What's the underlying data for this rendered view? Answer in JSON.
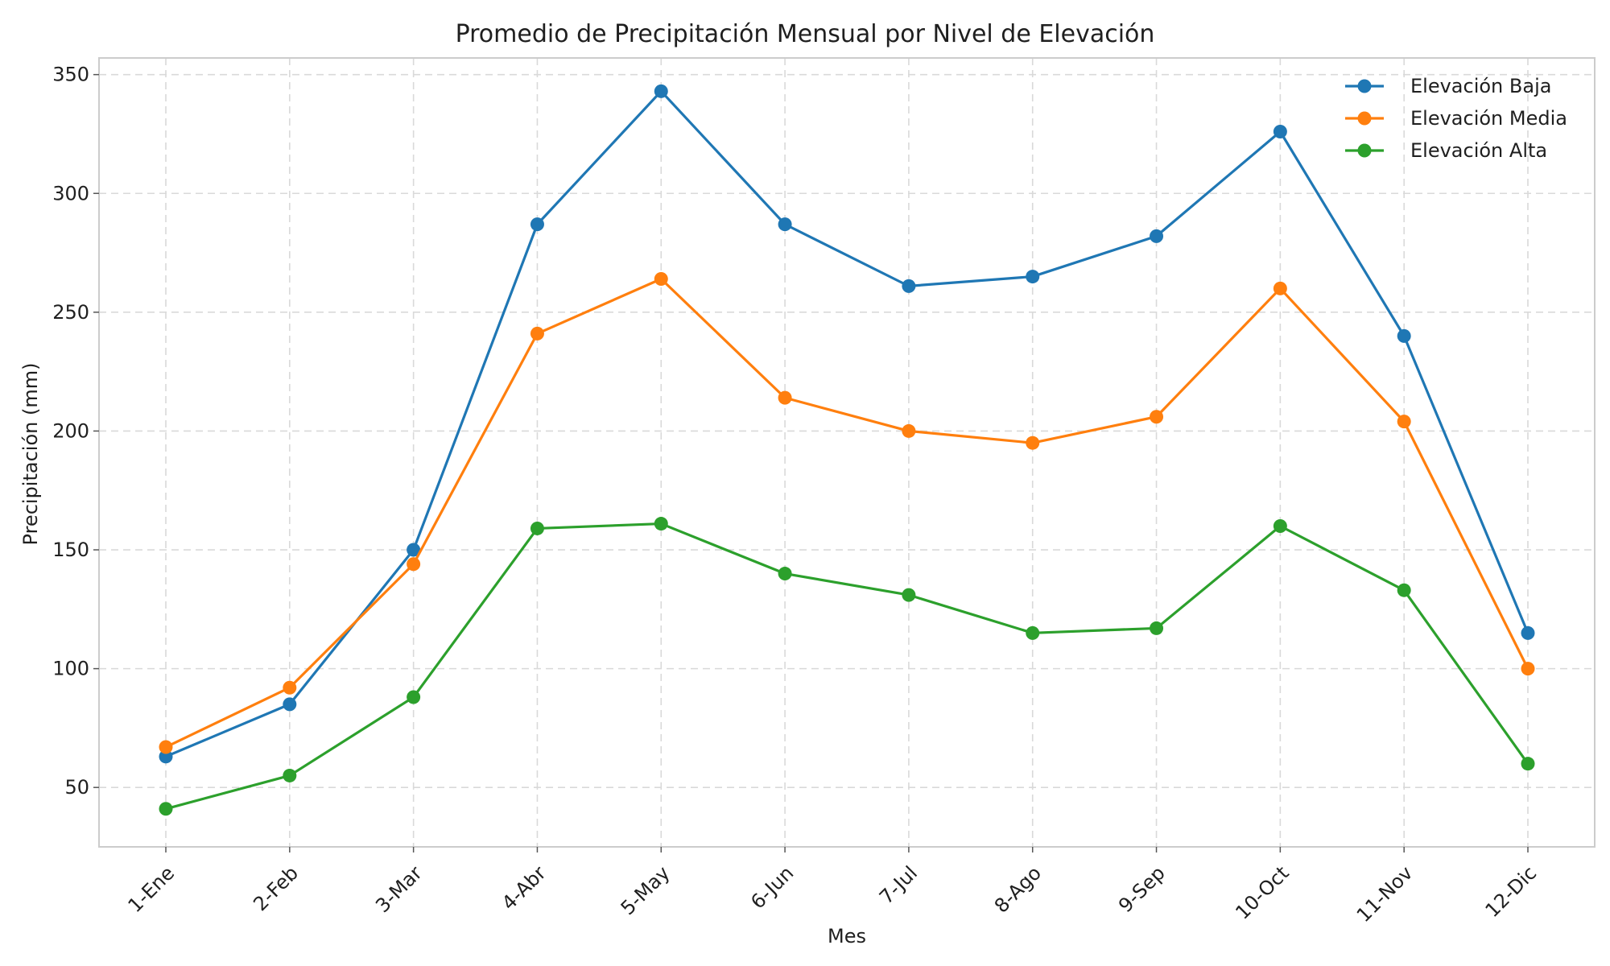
{
  "chart_data": {
    "type": "line",
    "title": "Promedio de Precipitación Mensual por Nivel de Elevación",
    "xlabel": "Mes",
    "ylabel": "Precipitación (mm)",
    "categories": [
      "1-Ene",
      "2-Feb",
      "3-Mar",
      "4-Abr",
      "5-May",
      "6-Jun",
      "7-Jul",
      "8-Ago",
      "9-Sep",
      "10-Oct",
      "11-Nov",
      "12-Dic"
    ],
    "ylim": [
      25,
      357
    ],
    "yticks": [
      50,
      100,
      150,
      200,
      250,
      300,
      350
    ],
    "grid": true,
    "legend_position": "top-right",
    "markers": "circle",
    "series": [
      {
        "name": "Elevación Baja",
        "color": "#1f77b4",
        "values": [
          63,
          85,
          150,
          287,
          343,
          287,
          261,
          265,
          282,
          326,
          240,
          115
        ]
      },
      {
        "name": "Elevación Media",
        "color": "#ff7f0e",
        "values": [
          67,
          92,
          144,
          241,
          264,
          214,
          200,
          195,
          206,
          260,
          204,
          100
        ]
      },
      {
        "name": "Elevación Alta",
        "color": "#2ca02c",
        "values": [
          41,
          55,
          88,
          159,
          161,
          140,
          131,
          115,
          117,
          160,
          133,
          60
        ]
      }
    ]
  }
}
